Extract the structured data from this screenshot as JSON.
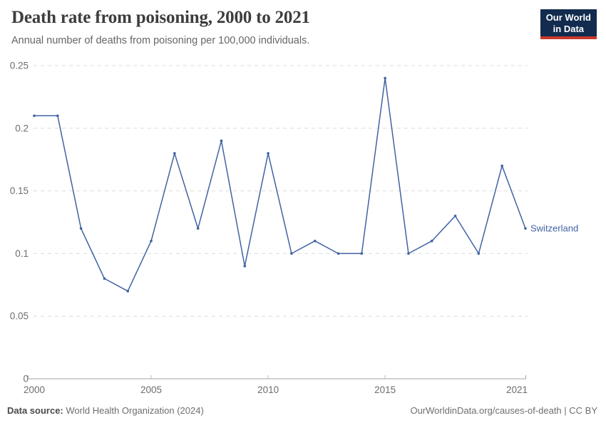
{
  "header": {
    "title": "Death rate from poisoning, 2000 to 2021",
    "subtitle": "Annual number of deaths from poisoning per 100,000 individuals.",
    "logo": {
      "line1": "Our World",
      "line2": "in Data"
    }
  },
  "chart_data": {
    "type": "line",
    "title": "Death rate from poisoning, 2000 to 2021",
    "subtitle": "Annual number of deaths from poisoning per 100,000 individuals.",
    "xlabel": "",
    "ylabel": "",
    "xlim": [
      2000,
      2021
    ],
    "ylim": [
      0,
      0.25
    ],
    "grid": "horizontal-dashed",
    "legend_position": "end-of-line-label",
    "x": [
      2000,
      2001,
      2002,
      2003,
      2004,
      2005,
      2006,
      2007,
      2008,
      2009,
      2010,
      2011,
      2012,
      2013,
      2014,
      2015,
      2016,
      2017,
      2018,
      2019,
      2020,
      2021
    ],
    "series": [
      {
        "name": "Switzerland",
        "values": [
          0.21,
          0.21,
          0.12,
          0.08,
          0.07,
          0.11,
          0.18,
          0.12,
          0.19,
          0.09,
          0.18,
          0.1,
          0.11,
          0.1,
          0.1,
          0.24,
          0.1,
          0.11,
          0.13,
          0.1,
          0.17,
          0.12
        ]
      }
    ],
    "yticks": [
      {
        "value": 0,
        "label": "0"
      },
      {
        "value": 0.05,
        "label": "0.05"
      },
      {
        "value": 0.1,
        "label": "0.1"
      },
      {
        "value": 0.15,
        "label": "0.15"
      },
      {
        "value": 0.2,
        "label": "0.2"
      },
      {
        "value": 0.25,
        "label": "0.25"
      }
    ],
    "xticks": [
      {
        "year": 2000,
        "label": "2000"
      },
      {
        "year": 2005,
        "label": "2005"
      },
      {
        "year": 2010,
        "label": "2010"
      },
      {
        "year": 2015,
        "label": "2015"
      },
      {
        "year": 2021,
        "label": "2021"
      }
    ]
  },
  "footer": {
    "source_label": "Data source:",
    "source_text": "World Health Organization (2024)",
    "credit": "OurWorldinData.org/causes-of-death | CC BY"
  },
  "colors": {
    "title_text": "#3d3d3d",
    "subtitle_text": "#666666",
    "tick_text": "#6e6e6e",
    "grid": "#dcdcdc",
    "axis": "#a3a3a3",
    "tick_mark": "#bbbbbb",
    "line": "#4063a3",
    "logo_bg": "#122b4e",
    "logo_accent": "#c9382c",
    "footer_text": "#6e6e6e",
    "footer_label": "#4a4a4a"
  }
}
